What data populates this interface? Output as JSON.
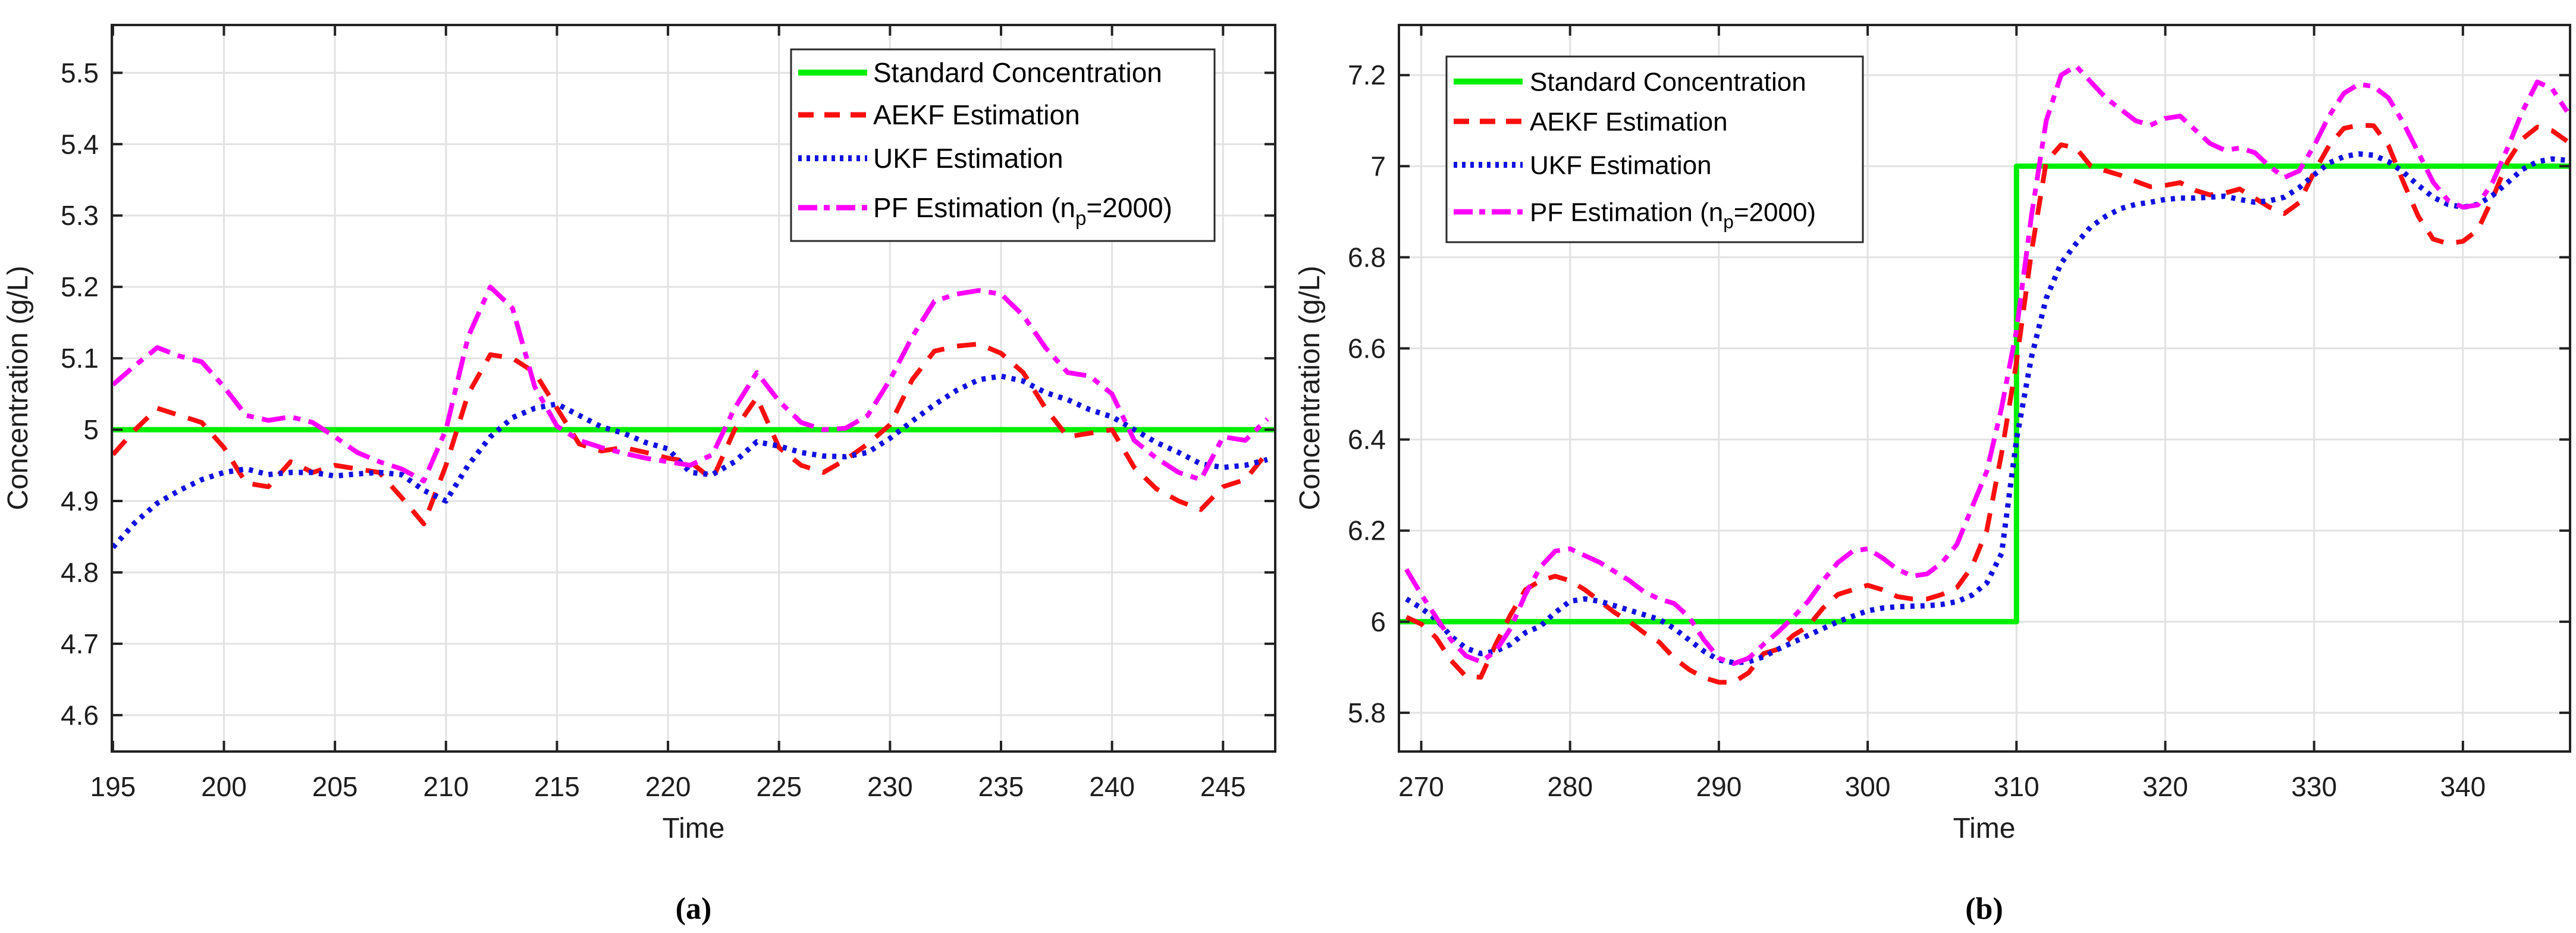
{
  "figure": {
    "background": "#ffffff",
    "text_color": "#1d1d1d",
    "axis_color": "#222222",
    "grid_color": "#e2e2e2"
  },
  "chart_data": [
    {
      "type": "line",
      "caption_label": "(a)",
      "xlabel": "Time",
      "ylabel": "Concentration (g/L)",
      "xlim": [
        194.95,
        247.35
      ],
      "ylim": [
        4.549,
        5.567
      ],
      "grid": true,
      "legend_position": "northeast",
      "xticks": {
        "values": [
          195,
          200,
          205,
          210,
          215,
          220,
          225,
          230,
          235,
          240,
          245
        ],
        "labels": [
          "195",
          "200",
          "205",
          "210",
          "215",
          "220",
          "225",
          "230",
          "235",
          "240",
          "245"
        ]
      },
      "yticks": {
        "values": [
          4.6,
          4.7,
          4.8,
          4.9,
          5.0,
          5.1,
          5.2,
          5.3,
          5.4,
          5.5
        ],
        "labels": [
          "4.6",
          "4.7",
          "4.8",
          "4.9",
          "5",
          "5.1",
          "5.2",
          "5.3",
          "5.4",
          "5.5"
        ]
      },
      "x": {
        "start": 195,
        "step": 1
      },
      "series": [
        {
          "name": "Standard Concentration",
          "color": "#00ef00",
          "dash": [],
          "width": 9,
          "const": 5.0
        },
        {
          "name": "AEKF Estimation",
          "color": "#fa0f0f",
          "dash": [
            32,
            22
          ],
          "width": 8,
          "values": [
            4.965,
            5.0,
            5.03,
            5.02,
            5.01,
            4.975,
            4.925,
            4.92,
            4.955,
            4.94,
            4.95,
            4.945,
            4.94,
            4.905,
            4.868,
            4.95,
            5.05,
            5.105,
            5.1,
            5.08,
            5.03,
            4.98,
            4.97,
            4.975,
            4.968,
            4.96,
            4.955,
            4.93,
            5.0,
            5.045,
            4.975,
            4.95,
            4.94,
            4.958,
            4.98,
            5.007,
            5.07,
            5.11,
            5.117,
            5.12,
            5.107,
            5.08,
            5.03,
            4.99,
            4.995,
            5.0,
            4.947,
            4.917,
            4.9,
            4.888,
            4.92,
            4.93,
            4.968
          ]
        },
        {
          "name": "UKF Estimation",
          "color": "#1111e0",
          "dash": [
            7,
            10
          ],
          "width": 9,
          "values": [
            4.835,
            4.87,
            4.897,
            4.915,
            4.93,
            4.94,
            4.945,
            4.937,
            4.94,
            4.94,
            4.935,
            4.938,
            4.94,
            4.937,
            4.915,
            4.9,
            4.95,
            4.99,
            5.017,
            5.03,
            5.036,
            5.02,
            5.004,
            4.995,
            4.982,
            4.973,
            4.94,
            4.937,
            4.955,
            4.983,
            4.977,
            4.968,
            4.963,
            4.962,
            4.968,
            4.988,
            5.012,
            5.035,
            5.055,
            5.07,
            5.075,
            5.068,
            5.052,
            5.042,
            5.028,
            5.018,
            5.0,
            4.982,
            4.968,
            4.952,
            4.947,
            4.95,
            4.958
          ]
        },
        {
          "name": "PF Estimation (n_p=2000)",
          "color": "#ff00ff",
          "dash": [
            40,
            14,
            12,
            14
          ],
          "width": 8,
          "values": [
            5.063,
            5.09,
            5.115,
            5.103,
            5.095,
            5.06,
            5.02,
            5.013,
            5.018,
            5.01,
            4.99,
            4.968,
            4.955,
            4.945,
            4.928,
            5.0,
            5.13,
            5.2,
            5.17,
            5.06,
            5.005,
            4.985,
            4.975,
            4.967,
            4.96,
            4.955,
            4.95,
            4.965,
            5.03,
            5.08,
            5.04,
            5.01,
            5.0,
            5.002,
            5.02,
            5.07,
            5.13,
            5.18,
            5.19,
            5.195,
            5.19,
            5.16,
            5.115,
            5.08,
            5.075,
            5.05,
            4.985,
            4.96,
            4.94,
            4.93,
            4.99,
            4.985,
            5.015
          ]
        }
      ]
    },
    {
      "type": "line",
      "caption_label": "(b)",
      "xlabel": "Time",
      "ylabel": "Concentration (g/L)",
      "xlim": [
        268.5,
        347.2
      ],
      "ylim": [
        5.715,
        7.31
      ],
      "grid": true,
      "legend_position": "northwest",
      "xticks": {
        "values": [
          270,
          280,
          290,
          300,
          310,
          320,
          330,
          340
        ],
        "labels": [
          "270",
          "280",
          "290",
          "300",
          "310",
          "320",
          "330",
          "340"
        ]
      },
      "yticks": {
        "values": [
          5.8,
          6.0,
          6.2,
          6.4,
          6.6,
          6.8,
          7.0,
          7.2
        ],
        "labels": [
          "5.8",
          "6",
          "6.2",
          "6.4",
          "6.6",
          "6.8",
          "7",
          "7.2"
        ]
      },
      "x": {
        "start": 269,
        "step": 1
      },
      "series": [
        {
          "name": "Standard Concentration",
          "color": "#00ef00",
          "dash": [],
          "width": 9,
          "step": {
            "before": 6.0,
            "after": 7.0,
            "at": 310
          }
        },
        {
          "name": "AEKF Estimation",
          "color": "#fa0f0f",
          "dash": [
            32,
            22
          ],
          "width": 8,
          "values": [
            6.01,
            5.995,
            5.965,
            5.915,
            5.88,
            5.878,
            5.95,
            6.015,
            6.07,
            6.09,
            6.1,
            6.09,
            6.07,
            6.045,
            6.02,
            6.0,
            5.975,
            5.955,
            5.92,
            5.895,
            5.877,
            5.867,
            5.867,
            5.888,
            5.93,
            5.94,
            5.97,
            5.99,
            6.03,
            6.06,
            6.07,
            6.08,
            6.07,
            6.055,
            6.05,
            6.05,
            6.06,
            6.075,
            6.12,
            6.2,
            6.37,
            6.57,
            6.81,
            7.01,
            7.047,
            7.04,
            7.0,
            6.99,
            6.98,
            6.967,
            6.955,
            6.958,
            6.964,
            6.947,
            6.937,
            6.941,
            6.95,
            6.93,
            6.91,
            6.896,
            6.92,
            6.987,
            7.045,
            7.083,
            7.09,
            7.089,
            7.045,
            6.965,
            6.89,
            6.84,
            6.83,
            6.835,
            6.86,
            6.93,
            7.01,
            7.06,
            7.086,
            7.078,
            7.055
          ]
        },
        {
          "name": "UKF Estimation",
          "color": "#1111e0",
          "dash": [
            7,
            10
          ],
          "width": 9,
          "values": [
            6.05,
            6.03,
            6.005,
            5.968,
            5.942,
            5.93,
            5.935,
            5.95,
            5.976,
            5.99,
            6.02,
            6.045,
            6.05,
            6.045,
            6.035,
            6.025,
            6.015,
            6.005,
            5.985,
            5.96,
            5.935,
            5.916,
            5.91,
            5.912,
            5.923,
            5.94,
            5.955,
            5.97,
            5.985,
            6.0,
            6.012,
            6.024,
            6.03,
            6.033,
            6.034,
            6.035,
            6.038,
            6.044,
            6.058,
            6.085,
            6.15,
            6.4,
            6.58,
            6.71,
            6.787,
            6.83,
            6.867,
            6.89,
            6.907,
            6.916,
            6.921,
            6.927,
            6.93,
            6.93,
            6.932,
            6.934,
            6.927,
            6.921,
            6.924,
            6.932,
            6.953,
            6.981,
            7.007,
            7.021,
            7.027,
            7.024,
            7.01,
            6.987,
            6.958,
            6.932,
            6.916,
            6.91,
            6.916,
            6.936,
            6.964,
            6.993,
            7.01,
            7.016,
            7.013
          ]
        },
        {
          "name": "PF Estimation (n_p=2000)",
          "color": "#ff00ff",
          "dash": [
            40,
            14,
            12,
            14
          ],
          "width": 8,
          "values": [
            6.115,
            6.06,
            6.01,
            5.96,
            5.925,
            5.912,
            5.935,
            5.985,
            6.06,
            6.12,
            6.155,
            6.16,
            6.145,
            6.13,
            6.11,
            6.09,
            6.065,
            6.05,
            6.04,
            6.01,
            5.96,
            5.92,
            5.908,
            5.92,
            5.95,
            5.978,
            6.01,
            6.045,
            6.09,
            6.13,
            6.155,
            6.16,
            6.14,
            6.115,
            6.1,
            6.105,
            6.13,
            6.17,
            6.25,
            6.33,
            6.47,
            6.64,
            6.89,
            7.1,
            7.2,
            7.22,
            7.185,
            7.15,
            7.125,
            7.1,
            7.09,
            7.105,
            7.11,
            7.08,
            7.05,
            7.035,
            7.04,
            7.03,
            7.0,
            6.975,
            6.99,
            7.045,
            7.11,
            7.16,
            7.18,
            7.175,
            7.15,
            7.095,
            7.03,
            6.965,
            6.925,
            6.91,
            6.915,
            6.965,
            7.04,
            7.12,
            7.185,
            7.17,
            7.12
          ]
        }
      ]
    }
  ]
}
